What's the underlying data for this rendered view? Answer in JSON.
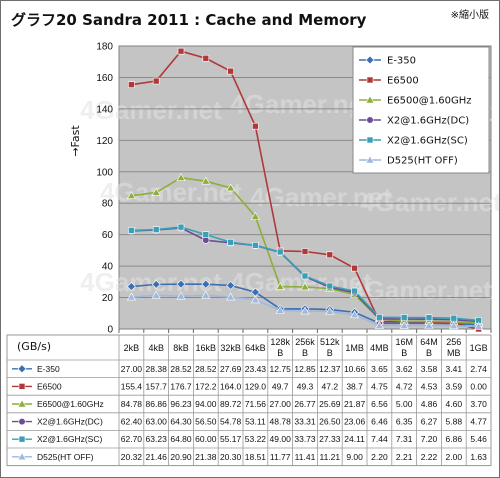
{
  "title": "グラフ20 Sandra 2011 : Cache and Memory",
  "note": "※縮小版",
  "watermark": "4Gamer.net",
  "ylabel": "→Fast",
  "unit_label": "(GB/s)",
  "chart_data": {
    "type": "line",
    "title": "グラフ20 Sandra 2011 : Cache and Memory",
    "ylabel": "→Fast",
    "xlabel": "(GB/s)",
    "ylim": [
      0,
      180
    ],
    "yticks": [
      0,
      20,
      40,
      60,
      80,
      100,
      120,
      140,
      160,
      180
    ],
    "grid": true,
    "legend": "top-right",
    "categories": [
      "2kB",
      "4kB",
      "8kB",
      "16kB",
      "32kB",
      "64kB",
      "128kB",
      "256kB",
      "512kB",
      "1MB",
      "4MB",
      "16MB",
      "64MB",
      "256MB",
      "1GB"
    ],
    "category_lines": [
      [
        "2kB"
      ],
      [
        "4kB"
      ],
      [
        "8kB"
      ],
      [
        "16kB"
      ],
      [
        "32kB"
      ],
      [
        "64kB"
      ],
      [
        "128k",
        "B"
      ],
      [
        "256k",
        "B"
      ],
      [
        "512k",
        "B"
      ],
      [
        "1MB"
      ],
      [
        "4MB"
      ],
      [
        "16M",
        "B"
      ],
      [
        "64M",
        "B"
      ],
      [
        "256",
        "MB"
      ],
      [
        "1GB"
      ]
    ],
    "series": [
      {
        "name": "E-350",
        "color": "#3d6fb0",
        "marker": "diamond",
        "values": [
          27.0,
          28.38,
          28.52,
          28.52,
          27.69,
          23.43,
          12.75,
          12.85,
          12.37,
          10.66,
          3.65,
          3.62,
          3.58,
          3.41,
          2.74
        ],
        "labels": [
          "27.00",
          "28.38",
          "28.52",
          "28.52",
          "27.69",
          "23.43",
          "12.75",
          "12.85",
          "12.37",
          "10.66",
          "3.65",
          "3.62",
          "3.58",
          "3.41",
          "2.74"
        ]
      },
      {
        "name": "E6500",
        "color": "#b0383a",
        "marker": "square",
        "values": [
          155.4,
          157.7,
          176.7,
          172.2,
          164.0,
          129.0,
          49.7,
          49.3,
          47.2,
          38.7,
          4.75,
          4.72,
          4.53,
          3.59,
          0.0
        ],
        "labels": [
          "155.4",
          "157.7",
          "176.7",
          "172.2",
          "164.0",
          "129.0",
          "49.7",
          "49.3",
          "47.2",
          "38.7",
          "4.75",
          "4.72",
          "4.53",
          "3.59",
          "0.00"
        ]
      },
      {
        "name": "E6500@1.60GHz",
        "color": "#8cae3a",
        "marker": "triangle",
        "values": [
          84.78,
          86.86,
          96.23,
          94.0,
          89.72,
          71.56,
          27.0,
          26.77,
          25.69,
          21.87,
          6.56,
          5.0,
          4.86,
          4.6,
          3.7
        ],
        "labels": [
          "84.78",
          "86.86",
          "96.23",
          "94.00",
          "89.72",
          "71.56",
          "27.00",
          "26.77",
          "25.69",
          "21.87",
          "6.56",
          "5.00",
          "4.86",
          "4.60",
          "3.70"
        ]
      },
      {
        "name": "X2@1.6GHz(DC)",
        "color": "#6c4e94",
        "marker": "circle",
        "values": [
          62.4,
          63.0,
          64.3,
          56.5,
          54.78,
          53.11,
          48.78,
          33.31,
          26.5,
          23.06,
          6.46,
          6.35,
          6.27,
          5.88,
          4.77
        ],
        "labels": [
          "62.40",
          "63.00",
          "64.30",
          "56.50",
          "54.78",
          "53.11",
          "48.78",
          "33.31",
          "26.50",
          "23.06",
          "6.46",
          "6.35",
          "6.27",
          "5.88",
          "4.77"
        ]
      },
      {
        "name": "X2@1.6GHz(SC)",
        "color": "#3a9fb8",
        "marker": "square",
        "values": [
          62.7,
          63.23,
          64.8,
          60.0,
          55.17,
          53.22,
          49.0,
          33.73,
          27.33,
          24.11,
          7.44,
          7.31,
          7.2,
          6.86,
          5.46
        ],
        "labels": [
          "62.70",
          "63.23",
          "64.80",
          "60.00",
          "55.17",
          "53.22",
          "49.00",
          "33.73",
          "27.33",
          "24.11",
          "7.44",
          "7.31",
          "7.20",
          "6.86",
          "5.46"
        ]
      },
      {
        "name": "D525(HT OFF)",
        "color": "#9eb8e0",
        "marker": "triangle",
        "values": [
          20.32,
          21.46,
          20.9,
          21.38,
          20.3,
          18.51,
          11.77,
          11.41,
          11.21,
          9.0,
          2.2,
          2.21,
          2.22,
          2.0,
          1.63
        ],
        "labels": [
          "20.32",
          "21.46",
          "20.90",
          "21.38",
          "20.30",
          "18.51",
          "11.77",
          "11.41",
          "11.21",
          "9.00",
          "2.20",
          "2.21",
          "2.22",
          "2.00",
          "1.63"
        ]
      }
    ]
  }
}
